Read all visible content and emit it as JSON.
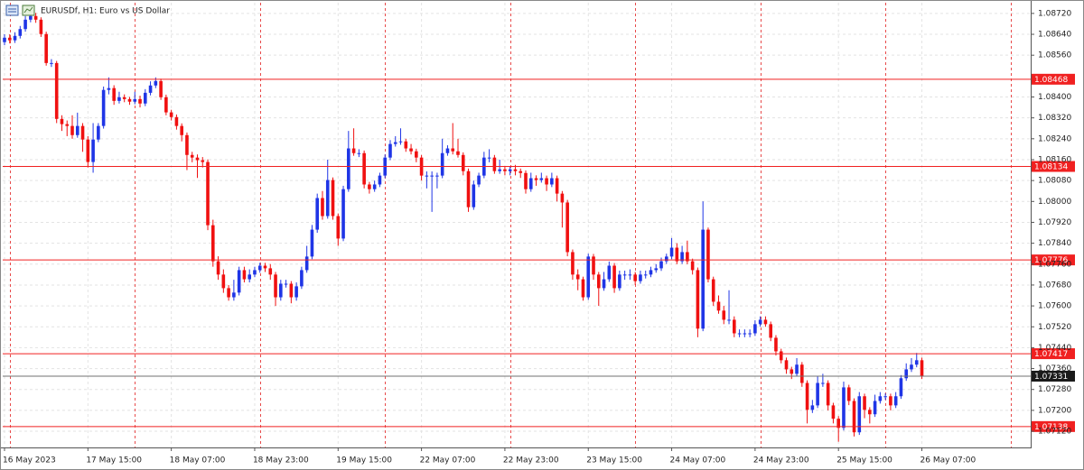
{
  "chart_data": {
    "type": "candlestick",
    "title": "EURUSDf, H1:  Euro vs US Dollar",
    "up_color": "#1f35e6",
    "down_color": "#f01010",
    "grid": true,
    "level_color": "#f02020",
    "ylim": [
      1.07058,
      1.08761
    ],
    "yticks": [
      {
        "value": 1.0872,
        "label": "1.08720"
      },
      {
        "value": 1.0864,
        "label": "1.08640"
      },
      {
        "value": 1.0856,
        "label": "1.08560"
      },
      {
        "value": 1.084,
        "label": "1.08400"
      },
      {
        "value": 1.0832,
        "label": "1.08320"
      },
      {
        "value": 1.0824,
        "label": "1.08240"
      },
      {
        "value": 1.0816,
        "label": "1.08160"
      },
      {
        "value": 1.0808,
        "label": "1.08080"
      },
      {
        "value": 1.08,
        "label": "1.08000"
      },
      {
        "value": 1.0792,
        "label": "1.07920"
      },
      {
        "value": 1.0784,
        "label": "1.07840"
      },
      {
        "value": 1.0776,
        "label": "1.07760"
      },
      {
        "value": 1.0768,
        "label": "1.07680"
      },
      {
        "value": 1.076,
        "label": "1.07600"
      },
      {
        "value": 1.0752,
        "label": "1.07520"
      },
      {
        "value": 1.0744,
        "label": "1.07440"
      },
      {
        "value": 1.0736,
        "label": "1.07360"
      },
      {
        "value": 1.0728,
        "label": "1.07280"
      },
      {
        "value": 1.072,
        "label": "1.07200"
      },
      {
        "value": 1.0712,
        "label": "1.07120"
      }
    ],
    "levels": [
      1.08468,
      1.08134,
      1.07776,
      1.07417,
      1.07138
    ],
    "current_price": 1.07331,
    "categories": [
      "16 May 2023",
      null,
      null,
      null,
      null,
      null,
      null,
      null,
      null,
      null,
      null,
      null,
      null,
      null,
      null,
      null,
      "17 May 15:00",
      null,
      null,
      null,
      null,
      null,
      null,
      null,
      null,
      null,
      null,
      null,
      null,
      null,
      null,
      null,
      "18 May 07:00",
      null,
      null,
      null,
      null,
      null,
      null,
      null,
      null,
      null,
      null,
      null,
      null,
      null,
      null,
      null,
      "18 May 23:00",
      null,
      null,
      null,
      null,
      null,
      null,
      null,
      null,
      null,
      null,
      null,
      null,
      null,
      null,
      null,
      "19 May 15:00",
      null,
      null,
      null,
      null,
      null,
      null,
      null,
      null,
      null,
      null,
      null,
      null,
      null,
      null,
      null,
      "22 May 07:00",
      null,
      null,
      null,
      null,
      null,
      null,
      null,
      null,
      null,
      null,
      null,
      null,
      null,
      null,
      null,
      "22 May 23:00",
      null,
      null,
      null,
      null,
      null,
      null,
      null,
      null,
      null,
      null,
      null,
      null,
      null,
      null,
      null,
      "23 May 15:00",
      null,
      null,
      null,
      null,
      null,
      null,
      null,
      null,
      null,
      null,
      null,
      null,
      null,
      null,
      null,
      "24 May 07:00",
      null,
      null,
      null,
      null,
      null,
      null,
      null,
      null,
      null,
      null,
      null,
      null,
      null,
      null,
      null,
      "24 May 23:00",
      null,
      null,
      null,
      null,
      null,
      null,
      null,
      null,
      null,
      null,
      null,
      null,
      null,
      null,
      null,
      "25 May 15:00",
      null,
      null,
      null,
      null,
      null,
      null,
      null,
      null,
      null,
      null,
      null,
      null,
      null,
      null,
      null,
      "26 May 07:00"
    ],
    "ohlc": [
      [
        1.0861,
        1.0864,
        1.08598,
        1.08627
      ],
      [
        1.08627,
        1.0864,
        1.08605,
        1.08617
      ],
      [
        1.08617,
        1.08648,
        1.08607,
        1.08634
      ],
      [
        1.08634,
        1.08672,
        1.08624,
        1.0866
      ],
      [
        1.0866,
        1.0871,
        1.0865,
        1.08696
      ],
      [
        1.08696,
        1.0873,
        1.08686,
        1.0871
      ],
      [
        1.0871,
        1.08722,
        1.08684,
        1.08696
      ],
      [
        1.08696,
        1.08705,
        1.0863,
        1.08641
      ],
      [
        1.08641,
        1.0865,
        1.0852,
        1.0853
      ],
      [
        1.0853,
        1.08545,
        1.08515,
        1.0853
      ],
      [
        1.0853,
        1.08538,
        1.083,
        1.08316
      ],
      [
        1.08316,
        1.0833,
        1.0827,
        1.08296
      ],
      [
        1.08296,
        1.0831,
        1.0825,
        1.08289
      ],
      [
        1.08289,
        1.0833,
        1.0824,
        1.08254
      ],
      [
        1.08254,
        1.0834,
        1.08244,
        1.08289
      ],
      [
        1.08289,
        1.083,
        1.0819,
        1.08237
      ],
      [
        1.08237,
        1.0825,
        1.0813,
        1.08151
      ],
      [
        1.08151,
        1.083,
        1.0811,
        1.08237
      ],
      [
        1.08237,
        1.083,
        1.08227,
        1.08289
      ],
      [
        1.08289,
        1.0844,
        1.08279,
        1.08427
      ],
      [
        1.08427,
        1.08475,
        1.0841,
        1.08434
      ],
      [
        1.08434,
        1.08445,
        1.0837,
        1.08385
      ],
      [
        1.08385,
        1.0842,
        1.08375,
        1.08399
      ],
      [
        1.08399,
        1.0841,
        1.0838,
        1.08392
      ],
      [
        1.08392,
        1.084,
        1.0837,
        1.08382
      ],
      [
        1.08382,
        1.0842,
        1.08372,
        1.08392
      ],
      [
        1.08392,
        1.08405,
        1.0836,
        1.08375
      ],
      [
        1.08375,
        1.0843,
        1.08365,
        1.08416
      ],
      [
        1.08416,
        1.0846,
        1.08406,
        1.08444
      ],
      [
        1.08444,
        1.08475,
        1.08434,
        1.08461
      ],
      [
        1.08461,
        1.0847,
        1.08389,
        1.08399
      ],
      [
        1.08399,
        1.08409,
        1.0833,
        1.08341
      ],
      [
        1.08341,
        1.08351,
        1.0831,
        1.08323
      ],
      [
        1.08323,
        1.08333,
        1.08275,
        1.08289
      ],
      [
        1.08289,
        1.08299,
        1.0823,
        1.08254
      ],
      [
        1.08254,
        1.08264,
        1.0812,
        1.08178
      ],
      [
        1.08178,
        1.0819,
        1.0815,
        1.08168
      ],
      [
        1.08168,
        1.0818,
        1.0809,
        1.08158
      ],
      [
        1.08158,
        1.0817,
        1.0813,
        1.08151
      ],
      [
        1.08151,
        1.08161,
        1.0789,
        1.07909
      ],
      [
        1.07909,
        1.0793,
        1.0775,
        1.07771
      ],
      [
        1.07771,
        1.0779,
        1.077,
        1.0772
      ],
      [
        1.0772,
        1.0774,
        1.0765,
        1.07668
      ],
      [
        1.07668,
        1.0768,
        1.0762,
        1.07633
      ],
      [
        1.07633,
        1.077,
        1.0762,
        1.07651
      ],
      [
        1.07651,
        1.0775,
        1.0764,
        1.07737
      ],
      [
        1.07737,
        1.0775,
        1.0769,
        1.07702
      ],
      [
        1.07702,
        1.0774,
        1.0769,
        1.0772
      ],
      [
        1.0772,
        1.0775,
        1.0771,
        1.07737
      ],
      [
        1.07737,
        1.07765,
        1.07727,
        1.07754
      ],
      [
        1.07754,
        1.07765,
        1.0773,
        1.07744
      ],
      [
        1.07744,
        1.0776,
        1.077,
        1.0772
      ],
      [
        1.0772,
        1.0773,
        1.076,
        1.07633
      ],
      [
        1.07633,
        1.077,
        1.0762,
        1.07685
      ],
      [
        1.07685,
        1.077,
        1.0767,
        1.07685
      ],
      [
        1.07685,
        1.07695,
        1.0761,
        1.07633
      ],
      [
        1.07633,
        1.0769,
        1.0762,
        1.07675
      ],
      [
        1.07675,
        1.0775,
        1.07665,
        1.07737
      ],
      [
        1.07737,
        1.0783,
        1.07727,
        1.07789
      ],
      [
        1.07789,
        1.0791,
        1.07779,
        1.07892
      ],
      [
        1.07892,
        1.0803,
        1.0788,
        1.08013
      ],
      [
        1.08013,
        1.0804,
        1.0793,
        1.07944
      ],
      [
        1.07944,
        1.0816,
        1.07934,
        1.08082
      ],
      [
        1.08082,
        1.08092,
        1.0793,
        1.07944
      ],
      [
        1.07944,
        1.07954,
        1.0783,
        1.07858
      ],
      [
        1.07858,
        1.0806,
        1.07848,
        1.08047
      ],
      [
        1.08047,
        1.0827,
        1.08037,
        1.08203
      ],
      [
        1.08203,
        1.0828,
        1.08175,
        1.08185
      ],
      [
        1.08185,
        1.082,
        1.0817,
        1.08185
      ],
      [
        1.08185,
        1.08195,
        1.0805,
        1.08065
      ],
      [
        1.08065,
        1.08075,
        1.0803,
        1.08047
      ],
      [
        1.08047,
        1.0808,
        1.08037,
        1.08065
      ],
      [
        1.08065,
        1.0811,
        1.08055,
        1.08099
      ],
      [
        1.08099,
        1.0818,
        1.08089,
        1.08168
      ],
      [
        1.08168,
        1.08235,
        1.08158,
        1.0822
      ],
      [
        1.0822,
        1.0825,
        1.0821,
        1.08227
      ],
      [
        1.08227,
        1.0828,
        1.08217,
        1.0823
      ],
      [
        1.0823,
        1.0824,
        1.0819,
        1.08203
      ],
      [
        1.08203,
        1.0822,
        1.0818,
        1.08192
      ],
      [
        1.08192,
        1.08202,
        1.0815,
        1.08168
      ],
      [
        1.08168,
        1.08178,
        1.0808,
        1.08099
      ],
      [
        1.08099,
        1.08115,
        1.0805,
        1.08099
      ],
      [
        1.08099,
        1.08115,
        1.0796,
        1.08099
      ],
      [
        1.08099,
        1.0811,
        1.0805,
        1.08099
      ],
      [
        1.08099,
        1.0824,
        1.08089,
        1.08185
      ],
      [
        1.08185,
        1.08215,
        1.08175,
        1.08203
      ],
      [
        1.08203,
        1.083,
        1.0818,
        1.08192
      ],
      [
        1.08192,
        1.0824,
        1.08168,
        1.08178
      ],
      [
        1.08178,
        1.08188,
        1.081,
        1.08116
      ],
      [
        1.08116,
        1.08126,
        1.0796,
        1.07978
      ],
      [
        1.07978,
        1.0808,
        1.07968,
        1.08065
      ],
      [
        1.08065,
        1.0811,
        1.08055,
        1.08099
      ],
      [
        1.08099,
        1.0819,
        1.08089,
        1.08168
      ],
      [
        1.08168,
        1.082,
        1.0815,
        1.08168
      ],
      [
        1.08168,
        1.08178,
        1.08106,
        1.08116
      ],
      [
        1.08116,
        1.0816,
        1.08106,
        1.08123
      ],
      [
        1.08123,
        1.08135,
        1.081,
        1.08116
      ],
      [
        1.08116,
        1.08135,
        1.081,
        1.08123
      ],
      [
        1.08123,
        1.0814,
        1.081,
        1.08116
      ],
      [
        1.08116,
        1.08126,
        1.0809,
        1.08109
      ],
      [
        1.08109,
        1.08119,
        1.0803,
        1.08047
      ],
      [
        1.08047,
        1.0811,
        1.08037,
        1.08089
      ],
      [
        1.08089,
        1.081,
        1.0806,
        1.08082
      ],
      [
        1.08082,
        1.0811,
        1.08072,
        1.08089
      ],
      [
        1.08089,
        1.08099,
        1.0804,
        1.08065
      ],
      [
        1.08065,
        1.0811,
        1.08055,
        1.08089
      ],
      [
        1.08089,
        1.08099,
        1.08,
        1.0803
      ],
      [
        1.0803,
        1.0804,
        1.079,
        1.07996
      ],
      [
        1.07996,
        1.08006,
        1.0779,
        1.07806
      ],
      [
        1.07806,
        1.07816,
        1.077,
        1.0772
      ],
      [
        1.0772,
        1.0774,
        1.0766,
        1.07702
      ],
      [
        1.07702,
        1.07712,
        1.0762,
        1.07633
      ],
      [
        1.07633,
        1.078,
        1.07623,
        1.07789
      ],
      [
        1.07789,
        1.07799,
        1.077,
        1.0772
      ],
      [
        1.0772,
        1.0773,
        1.076,
        1.07668
      ],
      [
        1.07668,
        1.0773,
        1.07658,
        1.07702
      ],
      [
        1.07702,
        1.0777,
        1.07692,
        1.07754
      ],
      [
        1.07754,
        1.07764,
        1.0765,
        1.07668
      ],
      [
        1.07668,
        1.07735,
        1.07658,
        1.0772
      ],
      [
        1.0772,
        1.07735,
        1.077,
        1.0772
      ],
      [
        1.0772,
        1.0774,
        1.077,
        1.0772
      ],
      [
        1.0772,
        1.0773,
        1.0768,
        1.07695
      ],
      [
        1.07695,
        1.07735,
        1.07685,
        1.0772
      ],
      [
        1.0772,
        1.07735,
        1.07705,
        1.0772
      ],
      [
        1.0772,
        1.0775,
        1.0771,
        1.07737
      ],
      [
        1.07737,
        1.0776,
        1.07727,
        1.07744
      ],
      [
        1.07744,
        1.07785,
        1.07734,
        1.07771
      ],
      [
        1.07771,
        1.078,
        1.07761,
        1.07789
      ],
      [
        1.07789,
        1.0786,
        1.07779,
        1.07823
      ],
      [
        1.07823,
        1.0784,
        1.0776,
        1.07771
      ],
      [
        1.07771,
        1.0783,
        1.07761,
        1.07806
      ],
      [
        1.07806,
        1.0785,
        1.0776,
        1.07771
      ],
      [
        1.07771,
        1.07781,
        1.0772,
        1.07737
      ],
      [
        1.07737,
        1.07747,
        1.0748,
        1.07513
      ],
      [
        1.07513,
        1.08,
        1.07503,
        1.07892
      ],
      [
        1.07892,
        1.079,
        1.0769,
        1.07702
      ],
      [
        1.07702,
        1.07712,
        1.076,
        1.07616
      ],
      [
        1.07616,
        1.0764,
        1.0757,
        1.07582
      ],
      [
        1.07582,
        1.076,
        1.0753,
        1.07547
      ],
      [
        1.07547,
        1.0766,
        1.0753,
        1.07547
      ],
      [
        1.07547,
        1.0756,
        1.0748,
        1.07495
      ],
      [
        1.07495,
        1.0751,
        1.0748,
        1.07495
      ],
      [
        1.07495,
        1.0751,
        1.0748,
        1.07495
      ],
      [
        1.07495,
        1.0751,
        1.0748,
        1.07495
      ],
      [
        1.07495,
        1.07545,
        1.07485,
        1.0753
      ],
      [
        1.0753,
        1.0756,
        1.0752,
        1.07547
      ],
      [
        1.07547,
        1.0756,
        1.0752,
        1.0753
      ],
      [
        1.0753,
        1.0754,
        1.07465,
        1.07478
      ],
      [
        1.07478,
        1.07488,
        1.0741,
        1.07426
      ],
      [
        1.07426,
        1.07436,
        1.0738,
        1.07392
      ],
      [
        1.07392,
        1.07402,
        1.0734,
        1.07357
      ],
      [
        1.07357,
        1.07367,
        1.0732,
        1.0734
      ],
      [
        1.0734,
        1.074,
        1.0733,
        1.07375
      ],
      [
        1.07375,
        1.07385,
        1.0729,
        1.07305
      ],
      [
        1.07305,
        1.07315,
        1.0715,
        1.07202
      ],
      [
        1.07202,
        1.0724,
        1.0719,
        1.07219
      ],
      [
        1.07219,
        1.0733,
        1.07209,
        1.07305
      ],
      [
        1.07305,
        1.0734,
        1.0729,
        1.07305
      ],
      [
        1.07305,
        1.07315,
        1.072,
        1.07219
      ],
      [
        1.07219,
        1.07229,
        1.0715,
        1.07168
      ],
      [
        1.07168,
        1.07178,
        1.0708,
        1.07133
      ],
      [
        1.07133,
        1.0731,
        1.07123,
        1.07288
      ],
      [
        1.07288,
        1.07298,
        1.0722,
        1.07236
      ],
      [
        1.07236,
        1.07246,
        1.071,
        1.07116
      ],
      [
        1.07116,
        1.0727,
        1.07106,
        1.07254
      ],
      [
        1.07254,
        1.07264,
        1.0717,
        1.07202
      ],
      [
        1.07202,
        1.07212,
        1.0715,
        1.07185
      ],
      [
        1.07185,
        1.0726,
        1.07175,
        1.07236
      ],
      [
        1.07236,
        1.0727,
        1.07226,
        1.07254
      ],
      [
        1.07254,
        1.07265,
        1.0724,
        1.07254
      ],
      [
        1.07254,
        1.07264,
        1.072,
        1.07219
      ],
      [
        1.07219,
        1.0727,
        1.07209,
        1.07254
      ],
      [
        1.07254,
        1.07335,
        1.07244,
        1.07323
      ],
      [
        1.07323,
        1.0738,
        1.07313,
        1.07357
      ],
      [
        1.07357,
        1.074,
        1.07347,
        1.07375
      ],
      [
        1.07375,
        1.0742,
        1.07365,
        1.07392
      ],
      [
        1.07392,
        1.07402,
        1.0732,
        1.07331
      ]
    ]
  }
}
